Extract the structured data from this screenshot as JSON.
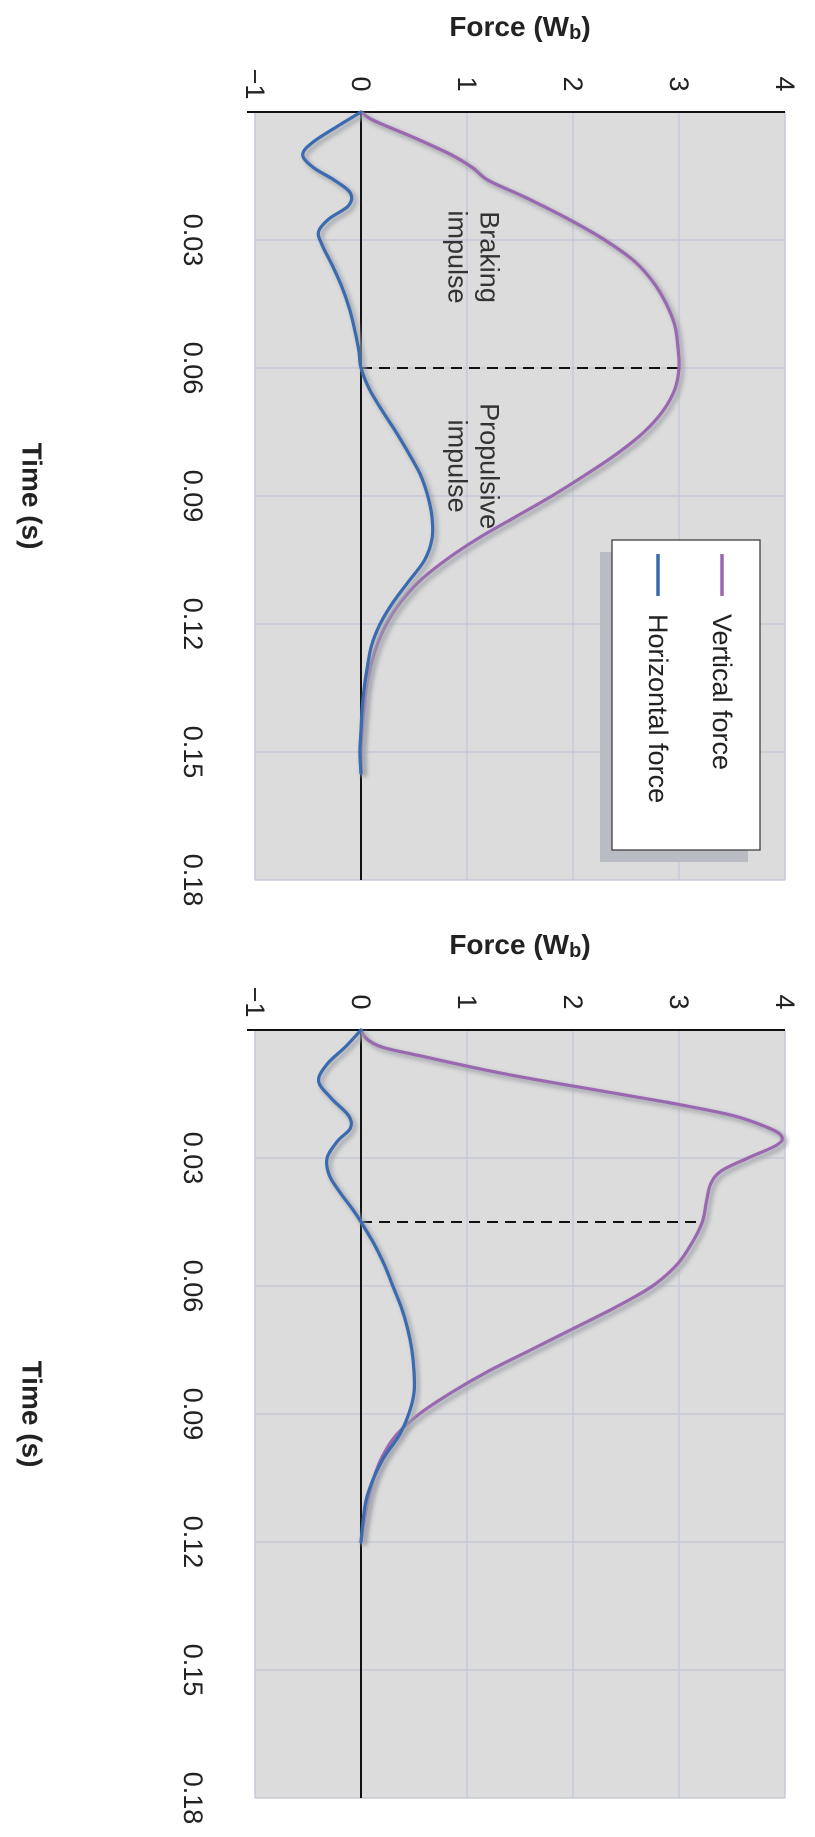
{
  "chart_data": [
    {
      "type": "line",
      "title": "",
      "xlabel": "Time (s)",
      "ylabel": "Force (W",
      "ylabel_sub": "b",
      "ylabel_close": ")",
      "xlim": [
        0,
        0.18
      ],
      "ylim": [
        -1,
        4
      ],
      "x_ticks": [
        "0.03",
        "0.06",
        "0.09",
        "0.12",
        "0.15",
        "0.18"
      ],
      "y_ticks": [
        "−1",
        "0",
        "1",
        "2",
        "3",
        "4"
      ],
      "grid": true,
      "legend_position": "bottom-right",
      "legend": [
        "Vertical force",
        "Horizontal force"
      ],
      "divider_x": 0.06,
      "annotations": [
        {
          "lines": [
            "Braking",
            "impulse"
          ],
          "x": 0.034,
          "y": 1.05
        },
        {
          "lines": [
            "Propulsive",
            "impulse"
          ],
          "x": 0.083,
          "y": 1.05
        }
      ],
      "series": [
        {
          "name": "Vertical force",
          "color": "#9a68b0",
          "points": [
            [
              0,
              0
            ],
            [
              0.002,
              0.12
            ],
            [
              0.006,
              0.5
            ],
            [
              0.01,
              0.85
            ],
            [
              0.013,
              1.05
            ],
            [
              0.016,
              1.2
            ],
            [
              0.02,
              1.55
            ],
            [
              0.025,
              1.95
            ],
            [
              0.03,
              2.3
            ],
            [
              0.035,
              2.58
            ],
            [
              0.04,
              2.76
            ],
            [
              0.045,
              2.88
            ],
            [
              0.05,
              2.96
            ],
            [
              0.055,
              2.99
            ],
            [
              0.06,
              3.0
            ],
            [
              0.065,
              2.96
            ],
            [
              0.07,
              2.85
            ],
            [
              0.075,
              2.67
            ],
            [
              0.08,
              2.42
            ],
            [
              0.085,
              2.12
            ],
            [
              0.09,
              1.8
            ],
            [
              0.095,
              1.45
            ],
            [
              0.1,
              1.1
            ],
            [
              0.105,
              0.8
            ],
            [
              0.11,
              0.55
            ],
            [
              0.115,
              0.37
            ],
            [
              0.12,
              0.24
            ],
            [
              0.125,
              0.15
            ],
            [
              0.13,
              0.09
            ],
            [
              0.135,
              0.05
            ],
            [
              0.14,
              0.03
            ],
            [
              0.145,
              0.01
            ],
            [
              0.15,
              0.0
            ],
            [
              0.155,
              0.0
            ]
          ]
        },
        {
          "name": "Horizontal force",
          "color": "#3a6ab0",
          "points": [
            [
              0,
              0
            ],
            [
              0.003,
              -0.2
            ],
            [
              0.007,
              -0.45
            ],
            [
              0.01,
              -0.55
            ],
            [
              0.013,
              -0.45
            ],
            [
              0.016,
              -0.25
            ],
            [
              0.019,
              -0.1
            ],
            [
              0.022,
              -0.12
            ],
            [
              0.025,
              -0.3
            ],
            [
              0.028,
              -0.4
            ],
            [
              0.031,
              -0.37
            ],
            [
              0.036,
              -0.27
            ],
            [
              0.041,
              -0.18
            ],
            [
              0.046,
              -0.11
            ],
            [
              0.051,
              -0.06
            ],
            [
              0.056,
              -0.02
            ],
            [
              0.06,
              0.0
            ],
            [
              0.065,
              0.08
            ],
            [
              0.07,
              0.2
            ],
            [
              0.075,
              0.33
            ],
            [
              0.08,
              0.45
            ],
            [
              0.085,
              0.56
            ],
            [
              0.09,
              0.63
            ],
            [
              0.095,
              0.67
            ],
            [
              0.1,
              0.67
            ],
            [
              0.105,
              0.6
            ],
            [
              0.11,
              0.45
            ],
            [
              0.115,
              0.3
            ],
            [
              0.12,
              0.18
            ],
            [
              0.125,
              0.1
            ],
            [
              0.13,
              0.06
            ],
            [
              0.135,
              0.03
            ],
            [
              0.14,
              0.01
            ],
            [
              0.145,
              0.0
            ],
            [
              0.15,
              -0.01
            ],
            [
              0.155,
              0.0
            ]
          ]
        }
      ]
    },
    {
      "type": "line",
      "title": "",
      "xlabel": "Time (s)",
      "ylabel": "Force (W",
      "ylabel_sub": "b",
      "ylabel_close": ")",
      "xlim": [
        0,
        0.18
      ],
      "ylim": [
        -1,
        4
      ],
      "x_ticks": [
        "0.03",
        "0.06",
        "0.09",
        "0.12",
        "0.15",
        "0.18"
      ],
      "y_ticks": [
        "−1",
        "0",
        "1",
        "2",
        "3",
        "4"
      ],
      "grid": true,
      "legend_position": "",
      "legend": [],
      "divider_x": 0.045,
      "annotations": [],
      "series": [
        {
          "name": "Vertical force",
          "color": "#9a68b0",
          "points": [
            [
              0,
              0
            ],
            [
              0.002,
              0.05
            ],
            [
              0.004,
              0.2
            ],
            [
              0.006,
              0.55
            ],
            [
              0.01,
              1.3
            ],
            [
              0.014,
              2.2
            ],
            [
              0.017,
              2.9
            ],
            [
              0.02,
              3.5
            ],
            [
              0.023,
              3.85
            ],
            [
              0.025,
              3.97
            ],
            [
              0.027,
              3.92
            ],
            [
              0.03,
              3.65
            ],
            [
              0.033,
              3.4
            ],
            [
              0.036,
              3.3
            ],
            [
              0.04,
              3.26
            ],
            [
              0.045,
              3.22
            ],
            [
              0.05,
              3.12
            ],
            [
              0.055,
              2.98
            ],
            [
              0.06,
              2.75
            ],
            [
              0.065,
              2.4
            ],
            [
              0.07,
              2.0
            ],
            [
              0.075,
              1.6
            ],
            [
              0.08,
              1.2
            ],
            [
              0.085,
              0.85
            ],
            [
              0.09,
              0.55
            ],
            [
              0.095,
              0.33
            ],
            [
              0.1,
              0.2
            ],
            [
              0.105,
              0.12
            ],
            [
              0.11,
              0.07
            ],
            [
              0.115,
              0.03
            ],
            [
              0.118,
              0.01
            ],
            [
              0.12,
              0.0
            ]
          ]
        },
        {
          "name": "Horizontal force",
          "color": "#3a6ab0",
          "points": [
            [
              0,
              0
            ],
            [
              0.004,
              -0.15
            ],
            [
              0.008,
              -0.32
            ],
            [
              0.012,
              -0.4
            ],
            [
              0.016,
              -0.28
            ],
            [
              0.02,
              -0.12
            ],
            [
              0.023,
              -0.1
            ],
            [
              0.026,
              -0.22
            ],
            [
              0.03,
              -0.32
            ],
            [
              0.034,
              -0.3
            ],
            [
              0.038,
              -0.2
            ],
            [
              0.042,
              -0.08
            ],
            [
              0.045,
              0.0
            ],
            [
              0.05,
              0.12
            ],
            [
              0.055,
              0.22
            ],
            [
              0.06,
              0.3
            ],
            [
              0.065,
              0.38
            ],
            [
              0.07,
              0.44
            ],
            [
              0.075,
              0.48
            ],
            [
              0.08,
              0.5
            ],
            [
              0.085,
              0.5
            ],
            [
              0.09,
              0.45
            ],
            [
              0.095,
              0.36
            ],
            [
              0.1,
              0.22
            ],
            [
              0.105,
              0.12
            ],
            [
              0.11,
              0.05
            ],
            [
              0.115,
              0.02
            ],
            [
              0.12,
              0.0
            ]
          ]
        }
      ]
    }
  ]
}
